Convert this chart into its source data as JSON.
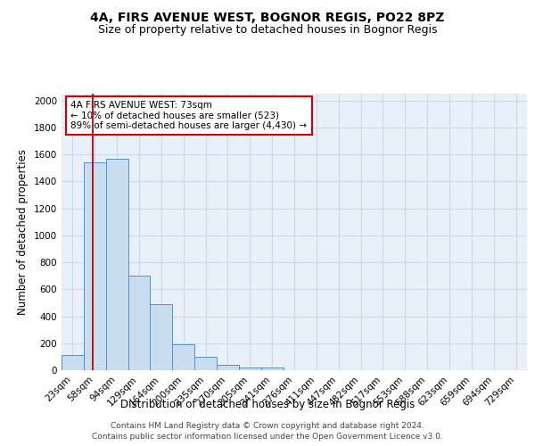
{
  "title1": "4A, FIRS AVENUE WEST, BOGNOR REGIS, PO22 8PZ",
  "title2": "Size of property relative to detached houses in Bognor Regis",
  "xlabel": "Distribution of detached houses by size in Bognor Regis",
  "ylabel": "Number of detached properties",
  "categories": [
    "23sqm",
    "58sqm",
    "94sqm",
    "129sqm",
    "164sqm",
    "200sqm",
    "235sqm",
    "270sqm",
    "305sqm",
    "341sqm",
    "376sqm",
    "411sqm",
    "447sqm",
    "482sqm",
    "517sqm",
    "553sqm",
    "588sqm",
    "623sqm",
    "659sqm",
    "694sqm",
    "729sqm"
  ],
  "values": [
    110,
    1540,
    1570,
    700,
    490,
    190,
    100,
    40,
    20,
    20,
    0,
    0,
    0,
    0,
    0,
    0,
    0,
    0,
    0,
    0,
    0
  ],
  "bar_color": "#c9ddf0",
  "bar_edge_color": "#5b8fc9",
  "background_color": "#e8f0fa",
  "grid_color": "#d0d8e8",
  "ylim": [
    0,
    2050
  ],
  "yticks": [
    0,
    200,
    400,
    600,
    800,
    1000,
    1200,
    1400,
    1600,
    1800,
    2000
  ],
  "red_line_x": 1.32,
  "annotation_text": "4A FIRS AVENUE WEST: 73sqm\n← 10% of detached houses are smaller (523)\n89% of semi-detached houses are larger (4,430) →",
  "annotation_box_color": "#cc0000",
  "footer1": "Contains HM Land Registry data © Crown copyright and database right 2024.",
  "footer2": "Contains public sector information licensed under the Open Government Licence v3.0.",
  "title1_fontsize": 10,
  "title2_fontsize": 9,
  "xlabel_fontsize": 8.5,
  "ylabel_fontsize": 8.5,
  "tick_fontsize": 7.5,
  "annotation_fontsize": 7.5,
  "footer_fontsize": 6.5
}
